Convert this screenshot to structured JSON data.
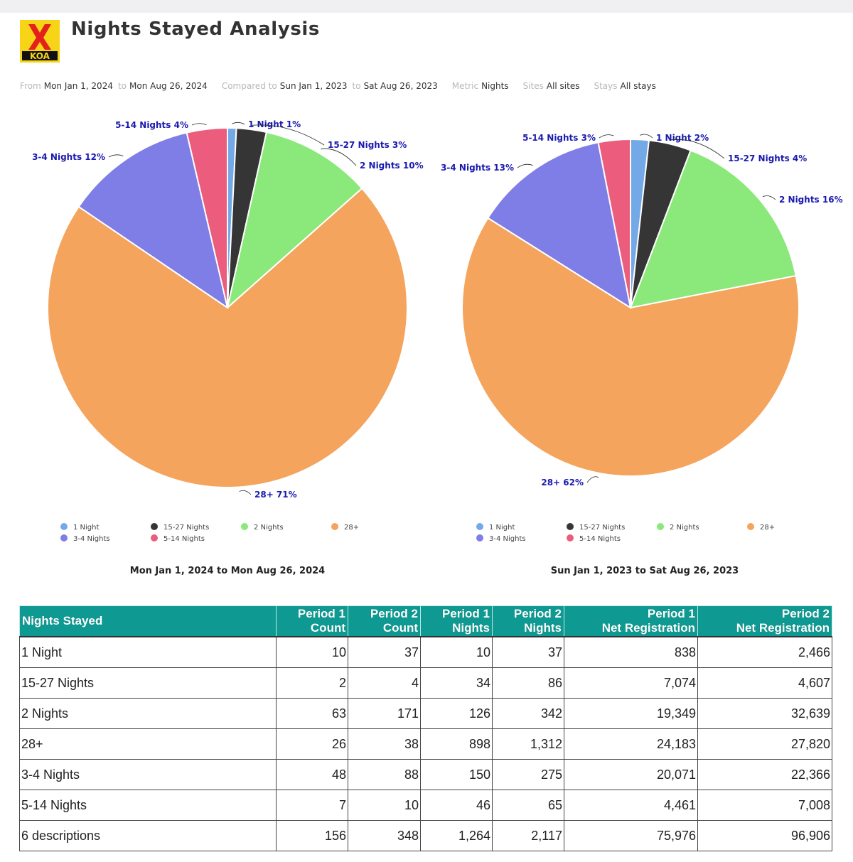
{
  "header": {
    "title": "Nights Stayed Analysis",
    "logo_text": "KOA"
  },
  "filters": {
    "from_label": "From",
    "from_value": "Mon Jan 1, 2024",
    "to_label": "to",
    "to_value": "Mon Aug 26, 2024",
    "compared_label": "Compared to",
    "compared_from": "Sun Jan 1, 2023",
    "compared_to_label": "to",
    "compared_to": "Sat Aug 26, 2023",
    "metric_label": "Metric",
    "metric_value": "Nights",
    "sites_label": "Sites",
    "sites_value": "All sites",
    "stays_label": "Stays",
    "stays_value": "All stays"
  },
  "colors": {
    "1 Night": "#74a9e8",
    "15-27 Nights": "#353535",
    "2 Nights": "#8be87b",
    "28+": "#f4a45c",
    "3-4 Nights": "#7e7ee6",
    "5-14 Nights": "#ec5c7c",
    "header_teal": "#0e9a92",
    "label_blue": "#1a1ab0"
  },
  "chart_data": [
    {
      "type": "pie",
      "caption": "Mon Jan 1, 2024 to Mon Aug 26, 2024",
      "slices": [
        {
          "name": "1 Night",
          "value": 10,
          "label": "1 Night 1%"
        },
        {
          "name": "15-27 Nights",
          "value": 34,
          "label": "15-27 Nights 3%"
        },
        {
          "name": "2 Nights",
          "value": 126,
          "label": "2 Nights 10%"
        },
        {
          "name": "28+",
          "value": 898,
          "label": "28+ 71%"
        },
        {
          "name": "3-4 Nights",
          "value": 150,
          "label": "3-4 Nights 12%"
        },
        {
          "name": "5-14 Nights",
          "value": 46,
          "label": "5-14 Nights 4%"
        }
      ],
      "legend": [
        "1 Night",
        "15-27 Nights",
        "2 Nights",
        "28+",
        "3-4 Nights",
        "5-14 Nights"
      ]
    },
    {
      "type": "pie",
      "caption": "Sun Jan 1, 2023 to Sat Aug 26, 2023",
      "slices": [
        {
          "name": "1 Night",
          "value": 37,
          "label": "1 Night 2%"
        },
        {
          "name": "15-27 Nights",
          "value": 86,
          "label": "15-27 Nights 4%"
        },
        {
          "name": "2 Nights",
          "value": 342,
          "label": "2 Nights 16%"
        },
        {
          "name": "28+",
          "value": 1312,
          "label": "28+ 62%"
        },
        {
          "name": "3-4 Nights",
          "value": 275,
          "label": "3-4 Nights 13%"
        },
        {
          "name": "5-14 Nights",
          "value": 65,
          "label": "5-14 Nights 3%"
        }
      ],
      "legend": [
        "1 Night",
        "15-27 Nights",
        "2 Nights",
        "28+",
        "3-4 Nights",
        "5-14 Nights"
      ]
    },
    {
      "type": "table",
      "columns": [
        [
          "Nights Stayed"
        ],
        [
          "Period 1",
          "Count"
        ],
        [
          "Period 2",
          "Count"
        ],
        [
          "Period 1",
          "Nights"
        ],
        [
          "Period 2",
          "Nights"
        ],
        [
          "Period 1",
          "Net Registration"
        ],
        [
          "Period 2",
          "Net Registration"
        ]
      ],
      "rows": [
        [
          "1 Night",
          "10",
          "37",
          "10",
          "37",
          "838",
          "2,466"
        ],
        [
          "15-27 Nights",
          "2",
          "4",
          "34",
          "86",
          "7,074",
          "4,607"
        ],
        [
          "2 Nights",
          "63",
          "171",
          "126",
          "342",
          "19,349",
          "32,639"
        ],
        [
          "28+",
          "26",
          "38",
          "898",
          "1,312",
          "24,183",
          "27,820"
        ],
        [
          "3-4 Nights",
          "48",
          "88",
          "150",
          "275",
          "20,071",
          "22,366"
        ],
        [
          "5-14 Nights",
          "7",
          "10",
          "46",
          "65",
          "4,461",
          "7,008"
        ],
        [
          "6 descriptions",
          "156",
          "348",
          "1,264",
          "2,117",
          "75,976",
          "96,906"
        ]
      ]
    }
  ]
}
